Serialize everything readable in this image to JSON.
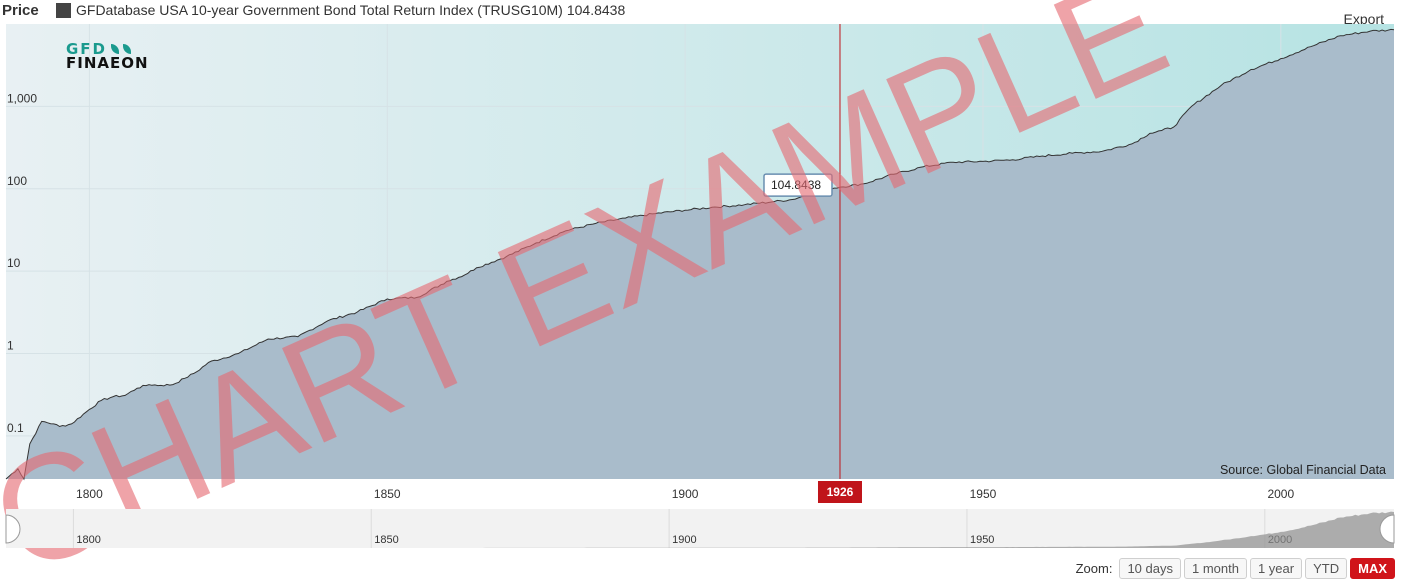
{
  "header": {
    "price_label": "Price",
    "legend_text": "GFDatabase USA 10-year Government Bond Total Return Index (TRUSG10M)",
    "legend_value": "104.8438",
    "legend_color": "#444444",
    "export_label": "Export"
  },
  "logo": {
    "line1": "GFD",
    "line2": "FINAEON"
  },
  "watermark": "CHART EXAMPLE",
  "source": "Source: Global Financial Data",
  "tooltip": {
    "value": "104.8438",
    "year_label": "1926"
  },
  "zoom": {
    "label": "Zoom:",
    "buttons": [
      "10 days",
      "1 month",
      "1 year",
      "YTD",
      "MAX"
    ],
    "active": "MAX"
  },
  "colors": {
    "plot_bg_left": "#e3eef1",
    "plot_bg_right": "#b9e4e4",
    "area_fill": "#a9bccb",
    "line": "#333333",
    "crosshair": "#c0141a",
    "watermark": "#e56b73"
  },
  "chart_data": {
    "type": "area",
    "y_scale": "log",
    "ylim": [
      0.03,
      10000
    ],
    "xlim": [
      1786,
      2019
    ],
    "y_ticks": [
      "0.1",
      "1",
      "10",
      "100",
      "1,000"
    ],
    "y_tick_values": [
      0.1,
      1,
      10,
      100,
      1000
    ],
    "x_ticks": [
      "1800",
      "1850",
      "1900",
      "1950",
      "2000"
    ],
    "x_tick_values": [
      1800,
      1850,
      1900,
      1950,
      2000
    ],
    "navigator_ticks": [
      "1800",
      "1850",
      "1900",
      "1950",
      "2000"
    ],
    "series": [
      {
        "name": "GFDatabase USA 10-year Government Bond Total Return Index (TRUSG10M)",
        "x": [
          1786,
          1788,
          1789,
          1790,
          1792,
          1794,
          1795,
          1797,
          1800,
          1802,
          1804,
          1806,
          1808,
          1810,
          1812,
          1814,
          1816,
          1818,
          1820,
          1825,
          1830,
          1835,
          1840,
          1845,
          1850,
          1855,
          1860,
          1863,
          1865,
          1870,
          1875,
          1880,
          1885,
          1890,
          1895,
          1900,
          1905,
          1910,
          1915,
          1918,
          1920,
          1924,
          1926,
          1930,
          1935,
          1940,
          1945,
          1950,
          1955,
          1960,
          1965,
          1970,
          1975,
          1978,
          1980,
          1982,
          1985,
          1990,
          1995,
          2000,
          2005,
          2010,
          2015,
          2019
        ],
        "y": [
          0.03,
          0.04,
          0.03,
          0.08,
          0.15,
          0.14,
          0.13,
          0.14,
          0.21,
          0.27,
          0.3,
          0.31,
          0.38,
          0.42,
          0.41,
          0.42,
          0.5,
          0.6,
          0.78,
          1.0,
          1.5,
          1.6,
          2.5,
          3.2,
          4.6,
          4.8,
          7.5,
          9.0,
          11,
          15,
          22,
          31,
          38,
          44,
          50,
          55,
          60,
          64,
          70,
          74,
          82,
          100,
          104.8438,
          115,
          150,
          185,
          210,
          215,
          225,
          250,
          270,
          285,
          350,
          470,
          510,
          560,
          1000,
          1800,
          2800,
          3800,
          5300,
          7200,
          8200,
          8500
        ]
      }
    ]
  }
}
